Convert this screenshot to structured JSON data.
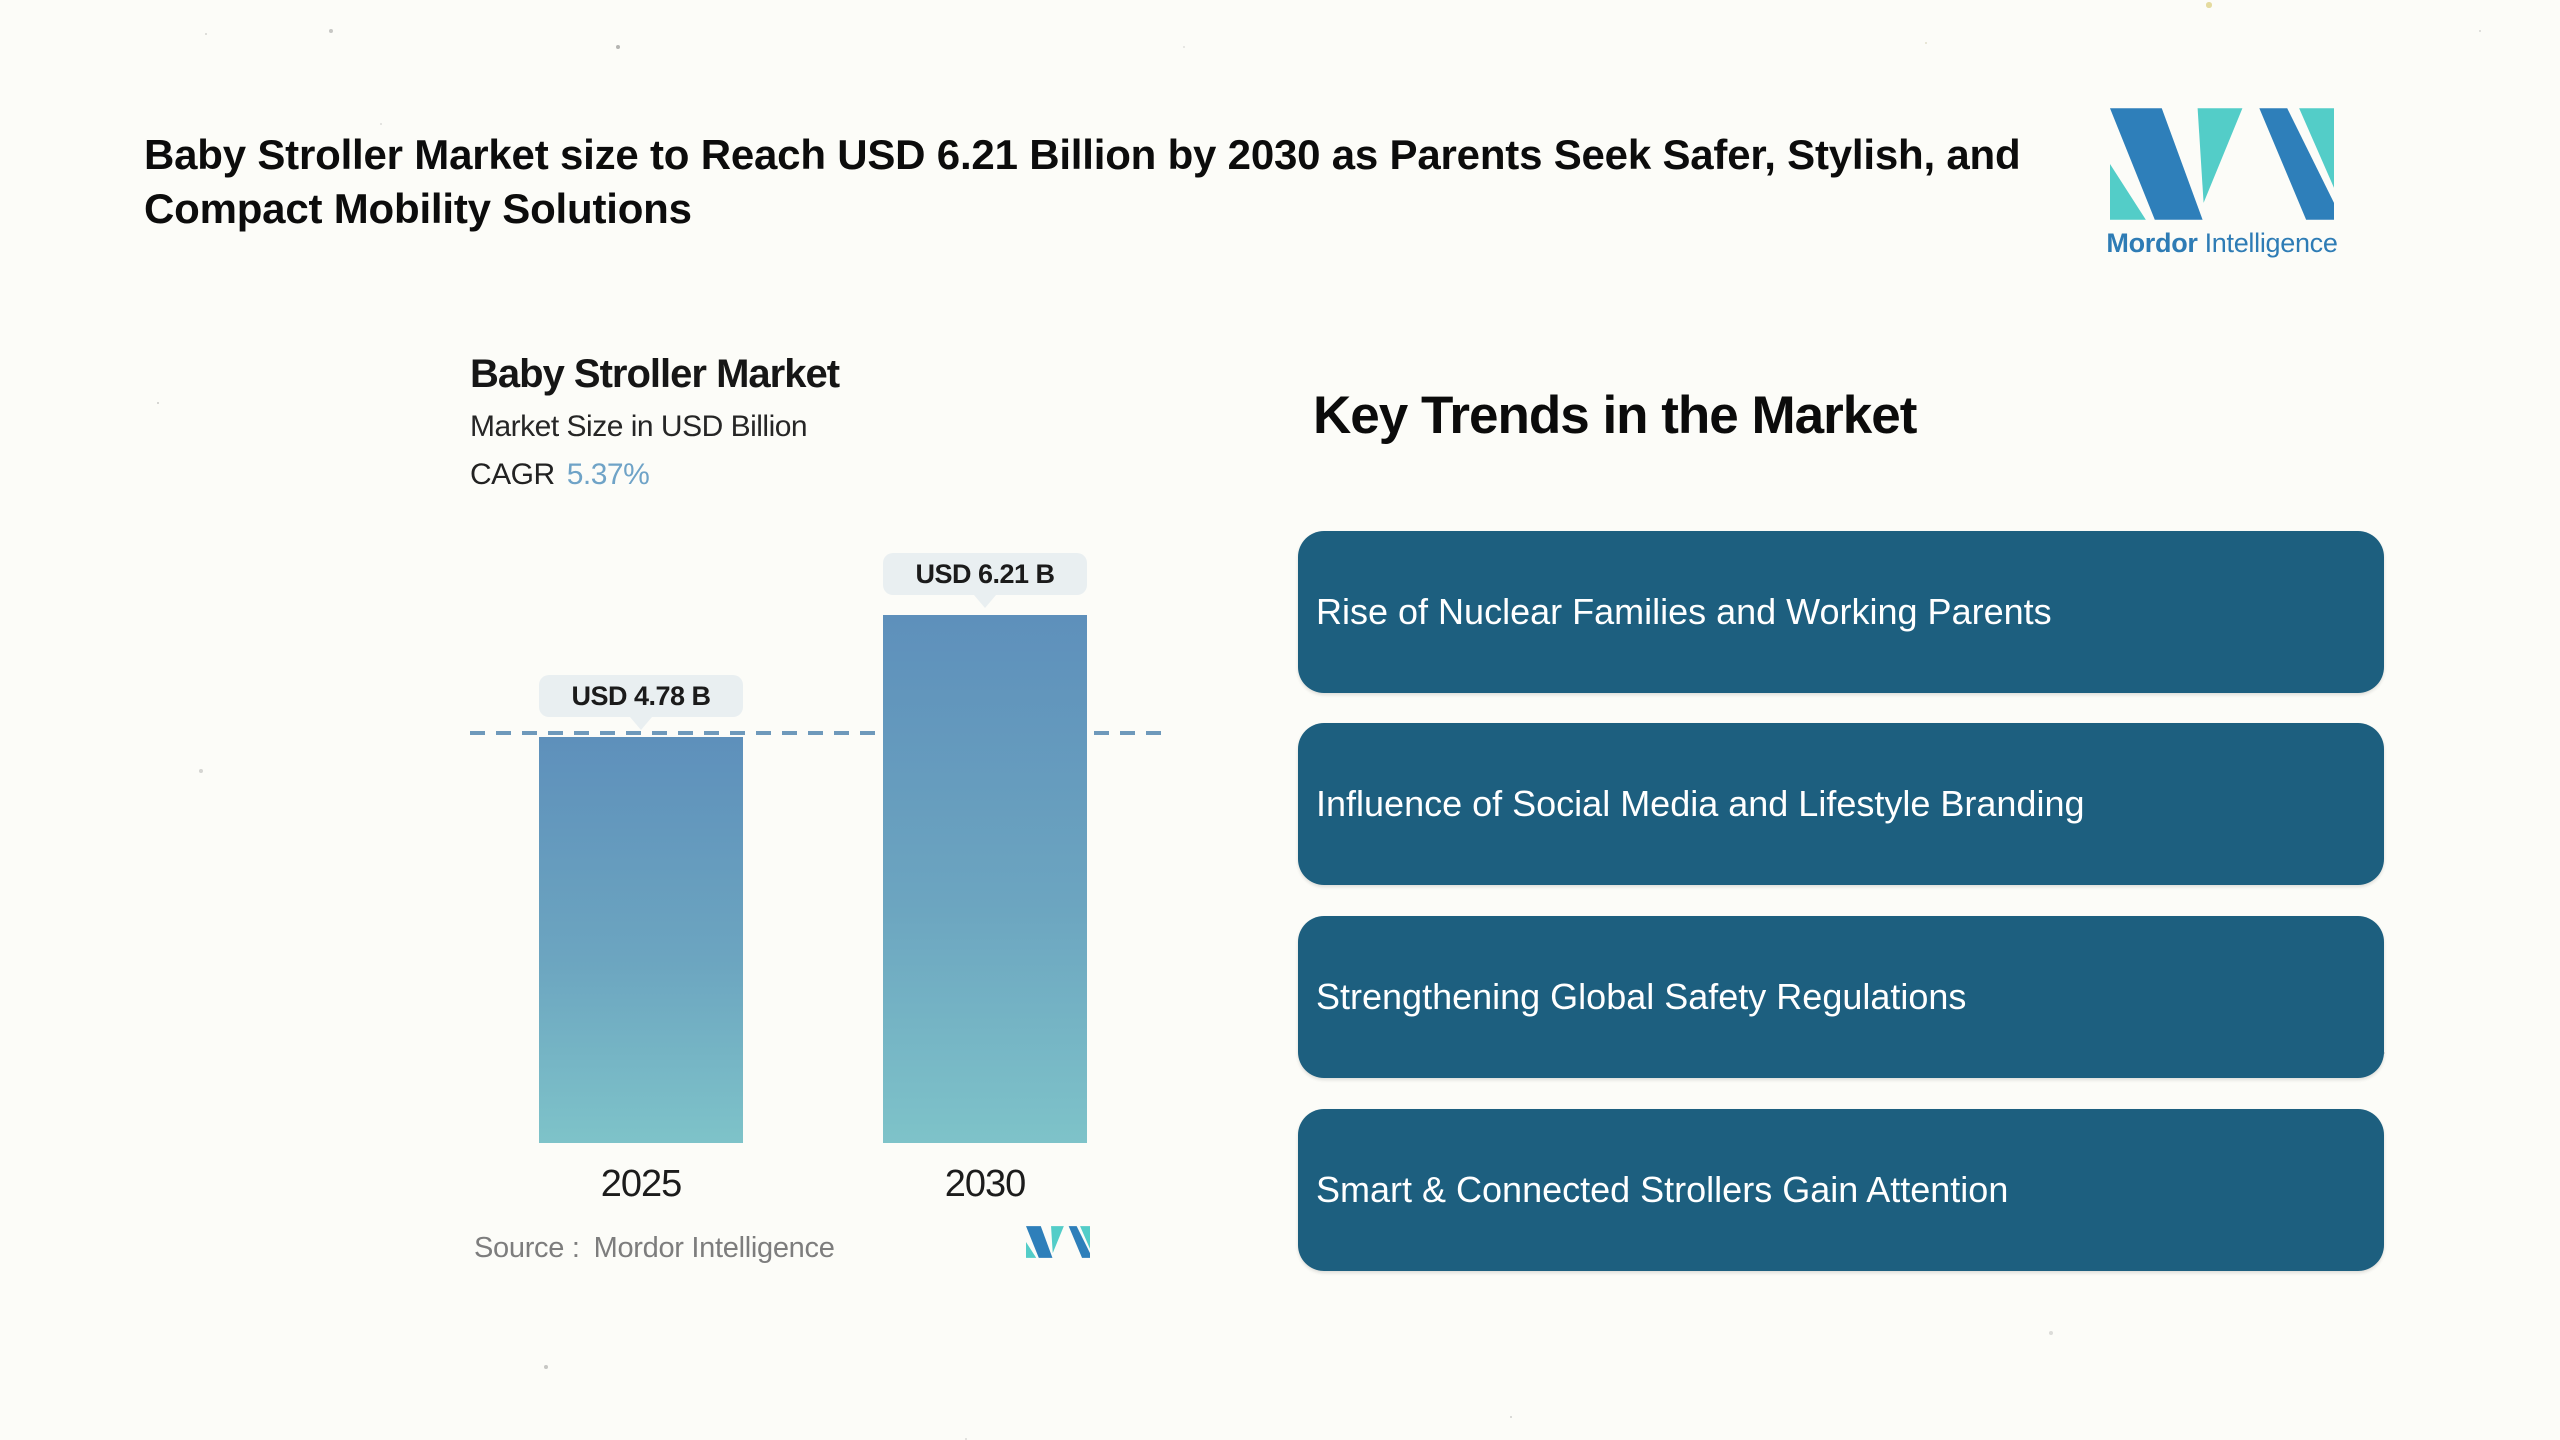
{
  "page": {
    "background": "#fcfcf8",
    "title": "Baby Stroller Market size to Reach USD 6.21 Billion by 2030 as Parents Seek Safer, Stylish, and Compact Mobility Solutions"
  },
  "brand": {
    "name_bold": "Mordor",
    "name_regular": "Intelligence",
    "logo_blue": "#2e7fba",
    "logo_teal": "#53cdc8",
    "wordmark_color": "#2e7cb5"
  },
  "chart": {
    "title": "Baby Stroller Market",
    "subtitle": "Market Size in USD Billion",
    "cagr_label": "CAGR",
    "cagr_value": "5.37%",
    "cagr_value_color": "#6fa3c7",
    "source_label": "Source :",
    "source_value": "Mordor Intelligence"
  },
  "chart_data": {
    "type": "bar",
    "title": "Baby Stroller Market",
    "unit": "USD Billion",
    "cagr_percent": 5.37,
    "categories": [
      "2025",
      "2030"
    ],
    "values": [
      4.78,
      6.21
    ],
    "value_labels": [
      "USD 4.78 B",
      "USD 6.21 B"
    ],
    "ylim": [
      0,
      6.8
    ],
    "grid": false,
    "legend": false,
    "reference_line": {
      "style": "dashed",
      "at_value": 4.78,
      "color": "#6e99bb"
    },
    "bar_gradient_top": "#5e90bb",
    "bar_gradient_mid": "#6ca5c0",
    "bar_gradient_bottom": "#7ec3c9",
    "label_bubble_bg": "#e9eff1"
  },
  "key_trends": {
    "heading": "Key Trends in the Market",
    "card_bg": "#1d5f7f",
    "card_text_color": "#ffffff",
    "items": [
      "Rise of Nuclear Families and Working Parents",
      "Influence of Social Media and Lifestyle Branding",
      "Strengthening Global Safety Regulations",
      "Smart & Connected Strollers Gain Attention"
    ]
  }
}
